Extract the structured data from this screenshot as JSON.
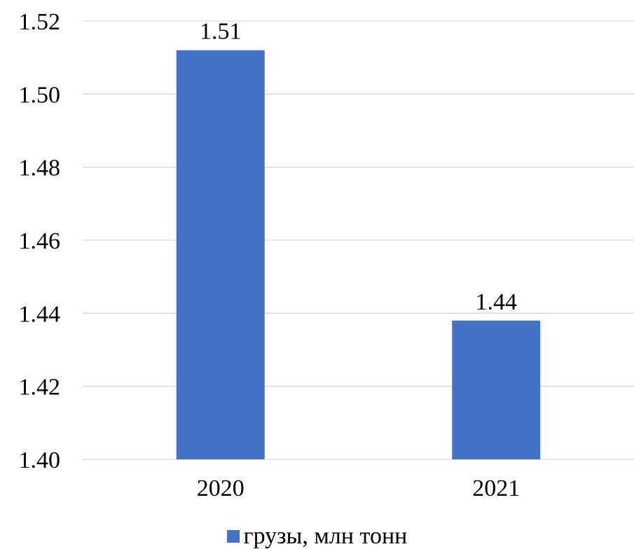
{
  "chart_data": {
    "type": "bar",
    "categories": [
      "2020",
      "2021"
    ],
    "series": [
      {
        "name": "грузы, млн тонн",
        "values": [
          1.512,
          1.438
        ],
        "color": "#4472C4"
      }
    ],
    "data_labels": [
      "1.51",
      "1.44"
    ],
    "ylim": [
      1.4,
      1.52
    ],
    "yticks": [
      1.4,
      1.42,
      1.44,
      1.46,
      1.48,
      1.5,
      1.52
    ],
    "ytick_labels": [
      "1.40",
      "1.42",
      "1.44",
      "1.46",
      "1.48",
      "1.50",
      "1.52"
    ],
    "grid": true,
    "gridline_color": "#d9d9d9",
    "legend_position": "bottom"
  },
  "legend": {
    "label": "грузы, млн тонн"
  }
}
